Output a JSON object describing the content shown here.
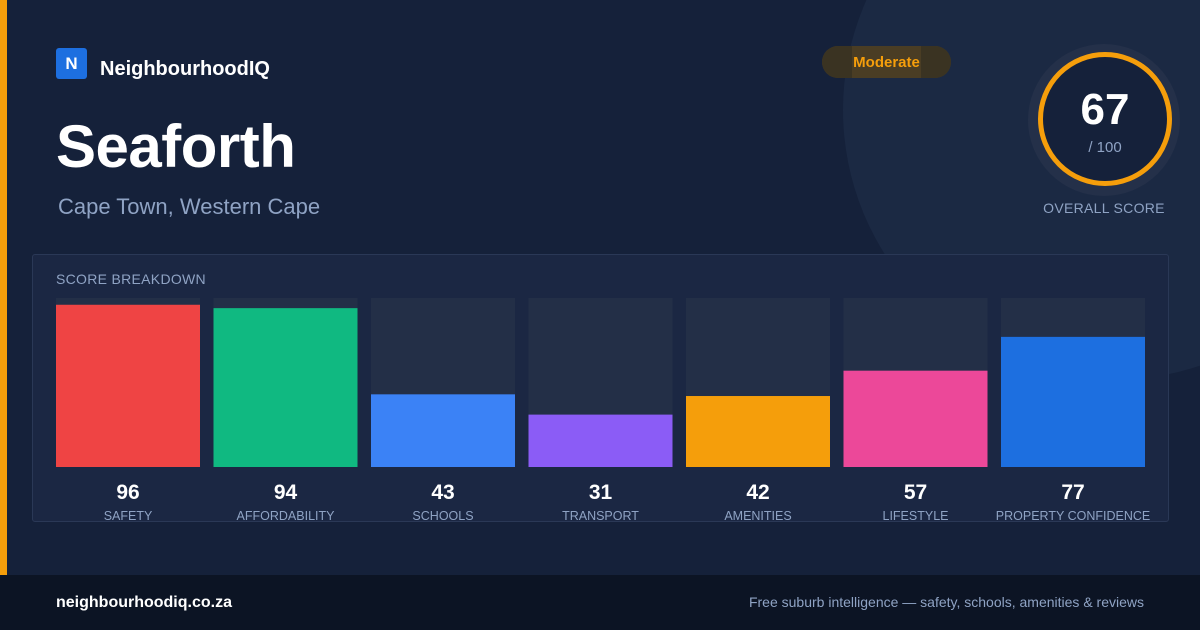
{
  "brand": {
    "logo_letter": "N",
    "name": "NeighbourhoodIQ"
  },
  "suburb": "Seaforth",
  "location": "Cape Town, Western Cape",
  "rating_badge": "Moderate",
  "overall": {
    "score": "67",
    "max_label": "/ 100",
    "label": "OVERALL SCORE"
  },
  "breakdown_title": "SCORE BREAKDOWN",
  "colors": {
    "accent": "#f59e0b",
    "background": "#15213a",
    "muted_text": "#8fa3c4"
  },
  "chart_data": {
    "type": "bar",
    "ylim": [
      0,
      100
    ],
    "categories": [
      "SAFETY",
      "AFFORDABILITY",
      "SCHOOLS",
      "TRANSPORT",
      "AMENITIES",
      "LIFESTYLE",
      "PROPERTY CONFIDENCE"
    ],
    "values": [
      96,
      94,
      43,
      31,
      42,
      57,
      77
    ],
    "bar_colors": [
      "#ef4444",
      "#10b981",
      "#3b82f6",
      "#8b5cf6",
      "#f59e0b",
      "#ec4899",
      "#1d6fe0"
    ],
    "track_color": "#232f47"
  },
  "footer": {
    "url": "neighbourhoodiq.co.za",
    "tagline": "Free suburb intelligence — safety, schools, amenities & reviews"
  }
}
